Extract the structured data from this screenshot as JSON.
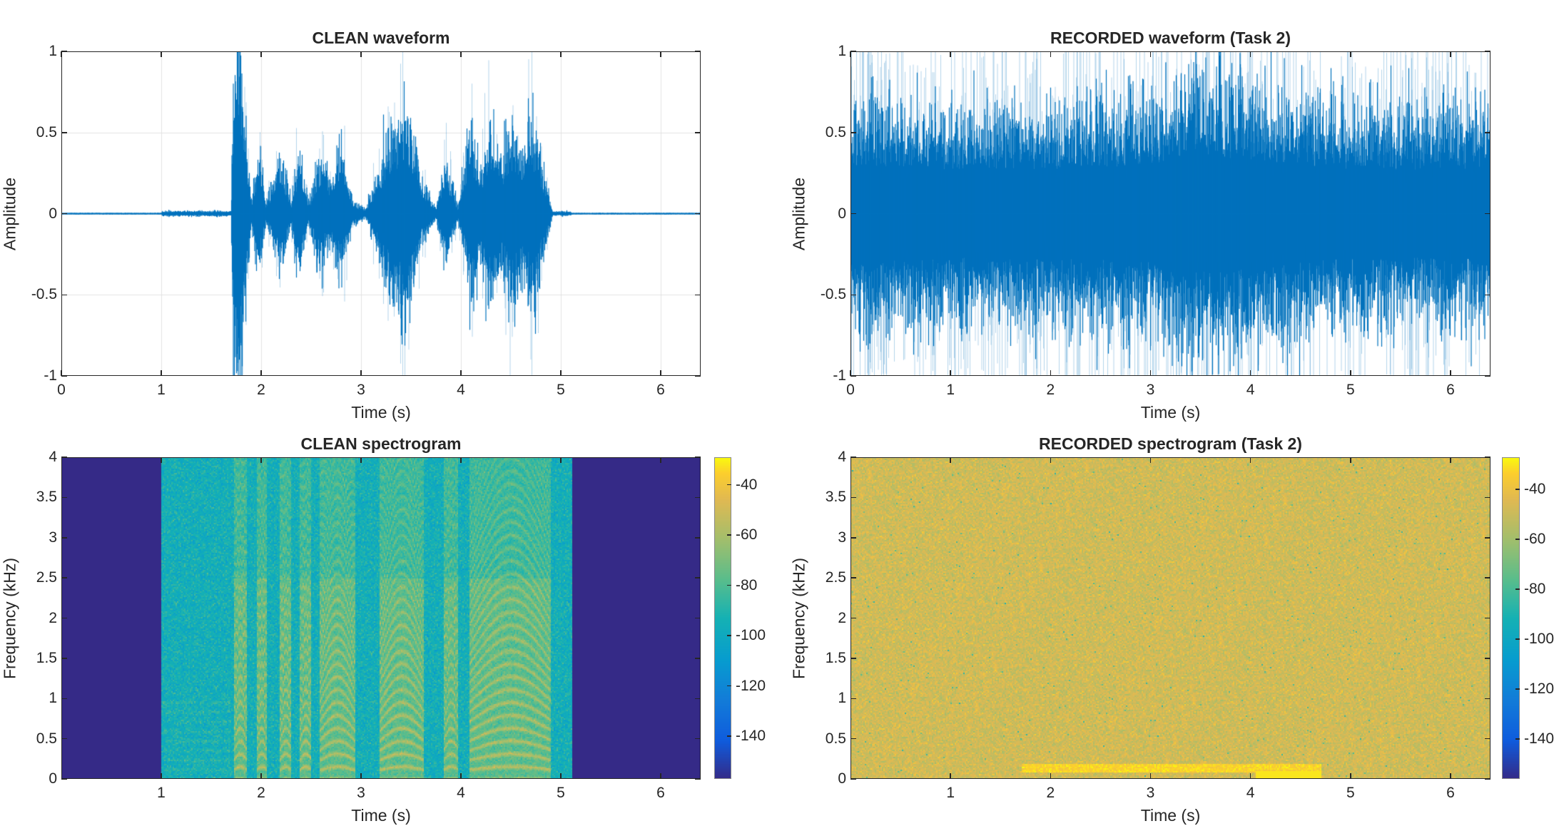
{
  "chart_data": [
    {
      "type": "line",
      "title": "CLEAN waveform",
      "xlabel": "Time (s)",
      "ylabel": "Amplitude",
      "xlim": [
        0,
        6.4
      ],
      "ylim": [
        -1,
        1
      ],
      "xticks": [
        "0",
        "1",
        "2",
        "3",
        "4",
        "5",
        "6"
      ],
      "yticks": [
        "-1",
        "-0.5",
        "0",
        "0.5",
        "1"
      ],
      "grid": true,
      "color": "#0072BD",
      "envelope": [
        [
          0,
          0.003
        ],
        [
          1.0,
          0.003
        ],
        [
          1.01,
          0.012
        ],
        [
          1.7,
          0.012
        ],
        [
          1.72,
          0.6
        ],
        [
          1.78,
          1.0
        ],
        [
          1.83,
          0.5
        ],
        [
          1.9,
          0.05
        ],
        [
          1.97,
          0.3
        ],
        [
          2.05,
          0.05
        ],
        [
          2.2,
          0.28
        ],
        [
          2.3,
          0.05
        ],
        [
          2.38,
          0.3
        ],
        [
          2.48,
          0.05
        ],
        [
          2.58,
          0.25
        ],
        [
          2.7,
          0.15
        ],
        [
          2.8,
          0.3
        ],
        [
          2.92,
          0.06
        ],
        [
          3.05,
          0.02
        ],
        [
          3.2,
          0.25
        ],
        [
          3.45,
          0.55
        ],
        [
          3.6,
          0.15
        ],
        [
          3.75,
          0.03
        ],
        [
          3.85,
          0.25
        ],
        [
          3.97,
          0.03
        ],
        [
          4.1,
          0.4
        ],
        [
          4.2,
          0.2
        ],
        [
          4.28,
          0.45
        ],
        [
          4.4,
          0.25
        ],
        [
          4.5,
          0.45
        ],
        [
          4.6,
          0.3
        ],
        [
          4.72,
          0.45
        ],
        [
          4.85,
          0.15
        ],
        [
          4.92,
          0.01
        ],
        [
          5.1,
          0.01
        ],
        [
          5.11,
          0.003
        ],
        [
          6.4,
          0.003
        ]
      ]
    },
    {
      "type": "line",
      "title": "RECORDED waveform (Task 2)",
      "xlabel": "Time (s)",
      "ylabel": "Amplitude",
      "xlim": [
        0,
        6.4
      ],
      "ylim": [
        -1,
        1
      ],
      "xticks": [
        "0",
        "1",
        "2",
        "3",
        "4",
        "5",
        "6"
      ],
      "yticks": [
        "-1",
        "-0.5",
        "0",
        "0.5",
        "1"
      ],
      "grid": false,
      "color": "#0072BD",
      "envelope": [
        [
          0,
          0.5
        ],
        [
          1.0,
          0.45
        ],
        [
          2.0,
          0.45
        ],
        [
          3.0,
          0.5
        ],
        [
          3.5,
          0.6
        ],
        [
          4.0,
          0.55
        ],
        [
          5.0,
          0.45
        ],
        [
          6.4,
          0.45
        ]
      ]
    },
    {
      "type": "heatmap",
      "title": "CLEAN spectrogram",
      "xlabel": "Time (s)",
      "ylabel": "Frequency (kHz)",
      "xlim": [
        0,
        6.4
      ],
      "ylim": [
        0,
        4
      ],
      "xticks": [
        "1",
        "2",
        "3",
        "4",
        "5",
        "6"
      ],
      "yticks": [
        "0",
        "0.5",
        "1",
        "1.5",
        "2",
        "2.5",
        "3",
        "3.5",
        "4"
      ],
      "colorbar_ticks": [
        "-140",
        "-120",
        "-100",
        "-80",
        "-60",
        "-40"
      ],
      "clim": [
        -157,
        -29
      ],
      "colormap": "parula",
      "silence_ranges_s": [
        [
          0,
          1.0
        ],
        [
          5.11,
          6.4
        ]
      ],
      "background_noise_db": -95,
      "voiced_segments_s": [
        [
          1.72,
          1.85
        ],
        [
          1.95,
          2.05
        ],
        [
          2.18,
          2.3
        ],
        [
          2.38,
          2.5
        ],
        [
          2.58,
          2.93
        ],
        [
          3.18,
          3.62
        ],
        [
          3.82,
          3.97
        ],
        [
          4.08,
          4.9
        ]
      ],
      "voiced_level_db": -50
    },
    {
      "type": "heatmap",
      "title": "RECORDED spectrogram (Task 2)",
      "xlabel": "Time (s)",
      "ylabel": "Frequency (kHz)",
      "xlim": [
        0,
        6.4
      ],
      "ylim": [
        0,
        4
      ],
      "xticks": [
        "1",
        "2",
        "3",
        "4",
        "5",
        "6"
      ],
      "yticks": [
        "0",
        "0.5",
        "1",
        "1.5",
        "2",
        "2.5",
        "3",
        "3.5",
        "4"
      ],
      "colorbar_ticks": [
        "-140",
        "-120",
        "-100",
        "-80",
        "-60",
        "-40"
      ],
      "clim": [
        -156,
        -27
      ],
      "colormap": "parula",
      "background_noise_db": -48,
      "low_band_khz": [
        0.08,
        0.2
      ],
      "low_band_time_s": [
        1.7,
        4.7
      ],
      "low_band_db": -33
    }
  ]
}
